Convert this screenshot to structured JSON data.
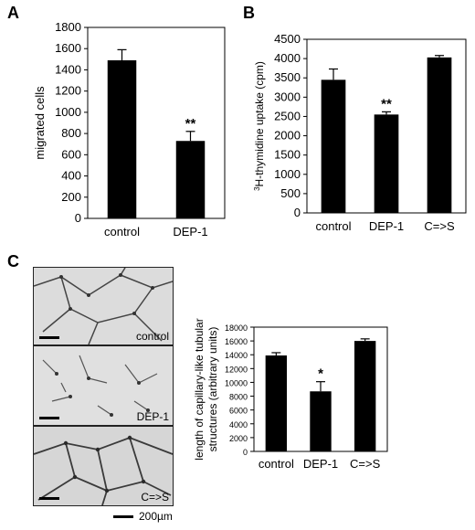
{
  "panels": {
    "a": {
      "letter": "A"
    },
    "b": {
      "letter": "B"
    },
    "c": {
      "letter": "C"
    }
  },
  "micrographs": {
    "labels": [
      "control",
      "DEP-1",
      "C=>S"
    ],
    "scale_label": "200µm"
  },
  "chart_data": [
    {
      "id": "A",
      "type": "bar",
      "categories": [
        "control",
        "DEP-1"
      ],
      "values": [
        1490,
        730
      ],
      "errors": [
        100,
        90
      ],
      "annotations": [
        "",
        "**"
      ],
      "ylabel": "migrated cells",
      "xlabel": "",
      "ylim": [
        0,
        1800
      ],
      "yticks": [
        0,
        200,
        400,
        600,
        800,
        1000,
        1200,
        1400,
        1600,
        1800
      ],
      "colors": {
        "bar": "#000000"
      }
    },
    {
      "id": "B",
      "type": "bar",
      "categories": [
        "control",
        "DEP-1",
        "C=>S"
      ],
      "values": [
        3450,
        2550,
        4030
      ],
      "errors": [
        280,
        70,
        50
      ],
      "annotations": [
        "",
        "**",
        ""
      ],
      "ylabel": "3H-thymidine uptake (cpm)",
      "ylabel_superscript": "3",
      "ylabel_rest": "H-thymidine uptake (cpm)",
      "xlabel": "",
      "ylim": [
        0,
        4500
      ],
      "yticks": [
        0,
        500,
        1000,
        1500,
        2000,
        2500,
        3000,
        3500,
        4000,
        4500
      ],
      "colors": {
        "bar": "#000000"
      }
    },
    {
      "id": "C",
      "type": "bar",
      "categories": [
        "control",
        "DEP-1",
        "C=>S"
      ],
      "values": [
        13900,
        8700,
        16000
      ],
      "errors": [
        400,
        1400,
        300
      ],
      "annotations": [
        "",
        "*",
        ""
      ],
      "ylabel_line1": "length of capillary-like tubular",
      "ylabel_line2": "structures (arbitrary units)",
      "xlabel": "",
      "ylim": [
        0,
        18000
      ],
      "yticks": [
        0,
        2000,
        4000,
        6000,
        8000,
        10000,
        12000,
        14000,
        16000,
        18000
      ],
      "colors": {
        "bar": "#000000"
      }
    }
  ]
}
